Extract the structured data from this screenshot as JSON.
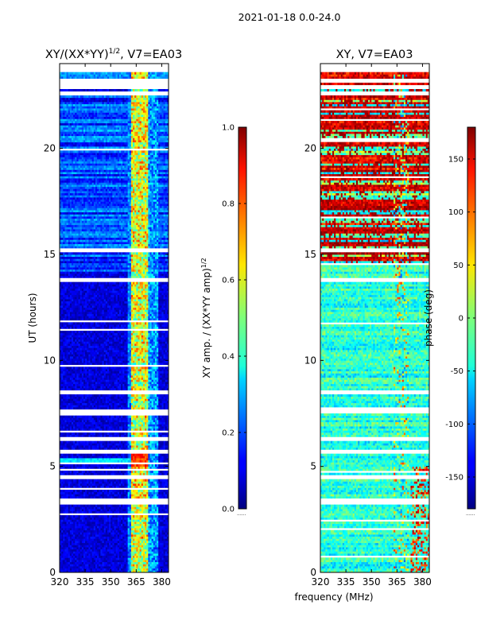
{
  "suptitle": "2021-01-18 0.0-24.0",
  "shared_xlabel": "frequency (MHz)",
  "chart_data": [
    {
      "type": "heatmap",
      "title": "XY/(XX*YY)",
      "title_sup": "1/2",
      "title_suffix": ", V7=EA03",
      "xlabel": "frequency (MHz)",
      "ylabel": "UT (hours)",
      "xlim": [
        320,
        384
      ],
      "ylim": [
        0,
        24
      ],
      "xticks": [
        320,
        335,
        350,
        365,
        380
      ],
      "yticks": [
        0,
        5,
        10,
        15,
        20
      ],
      "colorbar": {
        "label": "XY amp. / (XX*YY amp)",
        "label_sup": "1/2",
        "min": 0.0,
        "max": 1.0,
        "ticks": [
          "0.0",
          "0.2",
          "0.4",
          "0.6",
          "0.8",
          "1.0"
        ],
        "tick_values": [
          0.0,
          0.2,
          0.4,
          0.6,
          0.8,
          1.0
        ]
      },
      "colormap": "jet",
      "values_note": "low amplitude (~0.05) over 320-362 MHz; elevated (0.3-0.8) near 362-370 MHz, peak ~0.8 around 5.3 h",
      "flagged_hours": [
        3.3,
        3.45,
        4.5,
        5.7,
        6.3,
        7.6,
        8.5,
        13.8,
        15.2,
        22.6,
        22.9,
        23.2
      ]
    },
    {
      "type": "heatmap",
      "title": "XY",
      "title_suffix": ", V7=EA03",
      "xlabel": "frequency (MHz)",
      "ylabel": "",
      "xlim": [
        320,
        384
      ],
      "ylim": [
        0,
        24
      ],
      "xticks": [
        320,
        335,
        350,
        365,
        380
      ],
      "yticks": [
        0,
        5,
        10,
        15,
        20
      ],
      "colorbar": {
        "label": "phase (deg)",
        "min": -180,
        "max": 180,
        "ticks": [
          "-150",
          "-100",
          "-50",
          "0",
          "50",
          "100",
          "150"
        ],
        "tick_values": [
          -150,
          -100,
          -50,
          0,
          50,
          100,
          150
        ]
      },
      "colormap": "jet",
      "values_note": "phase near -50 to 0 deg below ~14 h; banded ~+100 to +180 deg above ~15 h",
      "flagged_hours": [
        3.3,
        3.45,
        4.5,
        5.7,
        6.3,
        7.6,
        8.5,
        13.8,
        15.2,
        22.6,
        22.9,
        23.2
      ]
    }
  ]
}
